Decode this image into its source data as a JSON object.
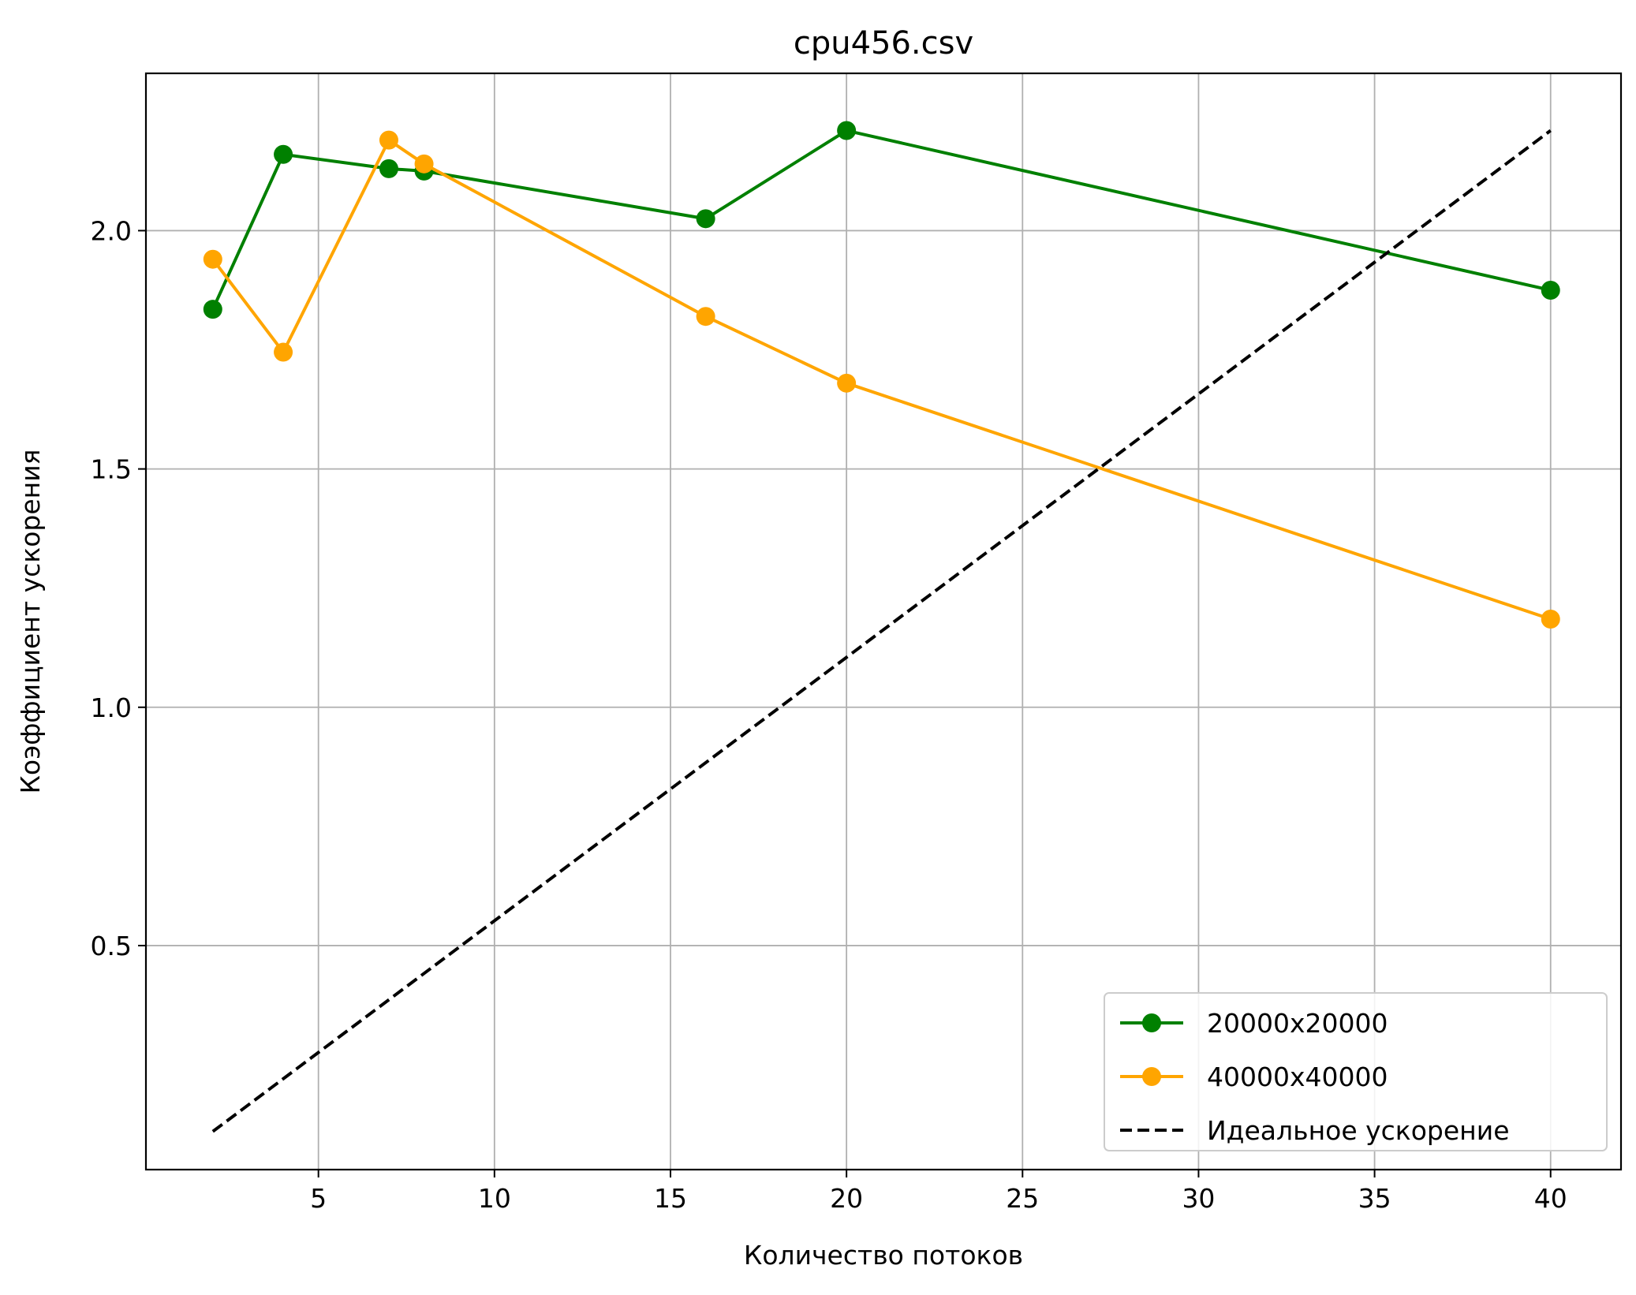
{
  "chart_data": {
    "type": "line",
    "title": "cpu456.csv",
    "xlabel": "Количество потоков",
    "ylabel": "Коэффициент ускорения",
    "xlim": [
      0.1,
      42.0
    ],
    "ylim": [
      0.03,
      2.33
    ],
    "xticks": [
      5,
      10,
      15,
      20,
      25,
      30,
      35,
      40
    ],
    "xtick_labels": [
      "5",
      "10",
      "15",
      "20",
      "25",
      "30",
      "35",
      "40"
    ],
    "yticks": [
      0.5,
      1.0,
      1.5,
      2.0
    ],
    "ytick_labels": [
      "0.5",
      "1.0",
      "1.5",
      "2.0"
    ],
    "grid": true,
    "legend_position": "lower-right",
    "series": [
      {
        "name": "20000x20000",
        "color": "#008000",
        "marker": "circle",
        "line_style": "solid",
        "x": [
          2,
          4,
          7,
          8,
          16,
          20,
          40
        ],
        "y": [
          1.835,
          2.16,
          2.13,
          2.125,
          2.025,
          2.21,
          1.875
        ]
      },
      {
        "name": "40000x40000",
        "color": "#ffa500",
        "marker": "circle",
        "line_style": "solid",
        "x": [
          2,
          4,
          7,
          8,
          16,
          20,
          40
        ],
        "y": [
          1.94,
          1.745,
          2.19,
          2.14,
          1.82,
          1.68,
          1.185
        ]
      },
      {
        "name": "Идеальное ускорение",
        "color": "#000000",
        "marker": "none",
        "line_style": "dashed",
        "x": [
          2,
          40
        ],
        "y": [
          0.11,
          2.21
        ]
      }
    ]
  }
}
